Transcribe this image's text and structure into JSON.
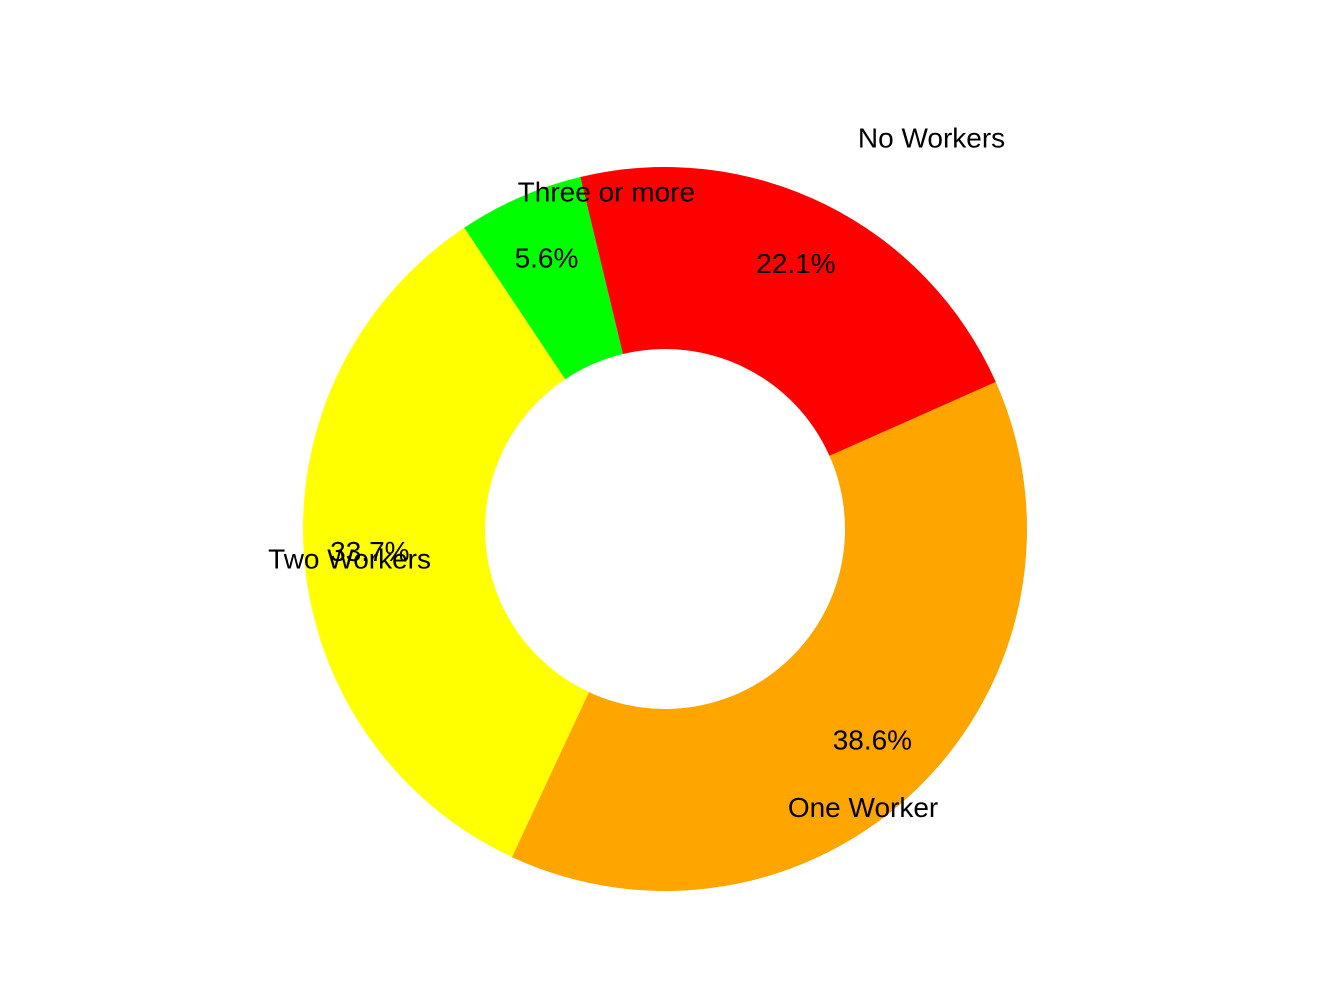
{
  "chart_data": {
    "type": "pie",
    "donut": true,
    "categories": [
      "Two Workers",
      "Three or more",
      "No Workers",
      "One Worker"
    ],
    "values": [
      33.7,
      5.6,
      22.1,
      38.6
    ],
    "value_labels": [
      "33.7%",
      "5.6%",
      "22.1%",
      "38.6%"
    ],
    "colors": [
      "#FFFF00",
      "#00FF00",
      "#FF0000",
      "#FFA500"
    ],
    "title": "",
    "legend": "none"
  }
}
